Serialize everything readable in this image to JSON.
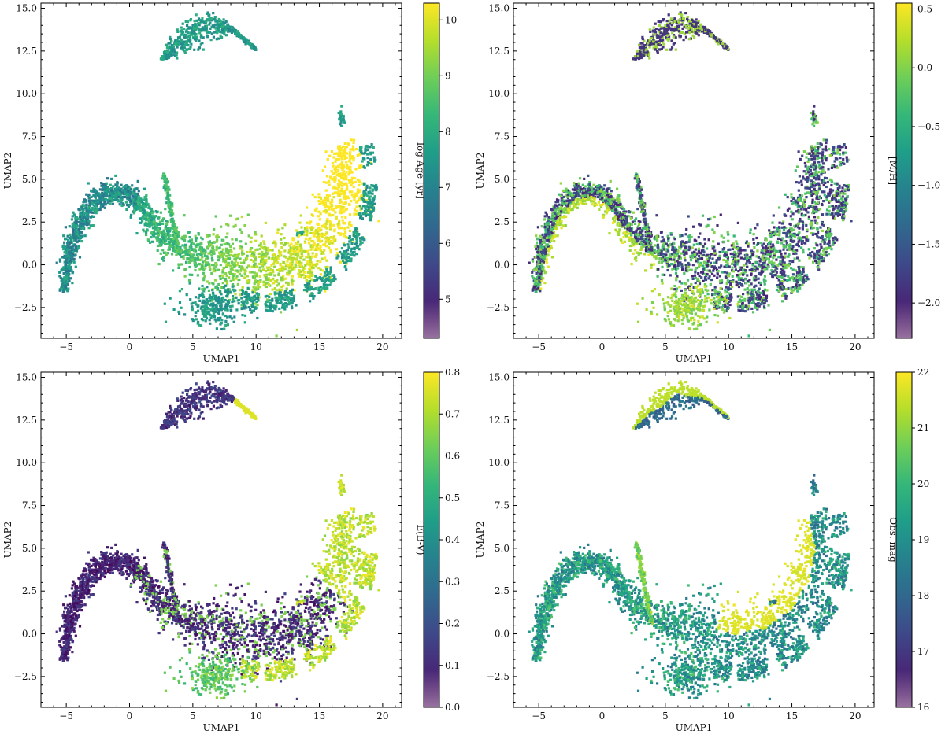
{
  "figure": {
    "panels": 4,
    "layout": "2x2 grid of UMAP scatter plots, colored by different parameters"
  },
  "chart_data": [
    {
      "type": "scatter",
      "title": "",
      "xlabel": "UMAP1",
      "ylabel": "UMAP2",
      "xlim": [
        -7,
        21.5
      ],
      "ylim": [
        -4.3,
        15.3
      ],
      "xticks": [
        "−5",
        "0",
        "5",
        "10",
        "15",
        "20"
      ],
      "xtick_values": [
        -5,
        0,
        5,
        10,
        15,
        20
      ],
      "yticks": [
        "−2.5",
        "0.0",
        "2.5",
        "5.0",
        "7.5",
        "10.0",
        "12.5",
        "15.0"
      ],
      "ytick_values": [
        -2.5,
        0,
        2.5,
        5,
        7.5,
        10,
        12.5,
        15
      ],
      "colorbar": {
        "label": "log Age [yr]",
        "range": [
          4.3,
          10.3
        ],
        "ticks": [
          "5",
          "6",
          "7",
          "8",
          "9",
          "10"
        ],
        "tick_values": [
          5,
          6,
          7,
          8,
          9,
          10
        ]
      },
      "color_pattern": "age",
      "grid": false
    },
    {
      "type": "scatter",
      "title": "",
      "xlabel": "UMAP1",
      "ylabel": "UMAP2",
      "xlim": [
        -7,
        21.5
      ],
      "ylim": [
        -4.3,
        15.3
      ],
      "xticks": [
        "−5",
        "0",
        "5",
        "10",
        "15",
        "20"
      ],
      "xtick_values": [
        -5,
        0,
        5,
        10,
        15,
        20
      ],
      "yticks": [
        "−2.5",
        "0.0",
        "2.5",
        "5.0",
        "7.5",
        "10.0",
        "12.5",
        "15.0"
      ],
      "ytick_values": [
        -2.5,
        0,
        2.5,
        5,
        7.5,
        10,
        12.5,
        15
      ],
      "colorbar": {
        "label": "[M/H]",
        "range": [
          -2.3,
          0.55
        ],
        "ticks": [
          "−2.0",
          "−1.5",
          "−1.0",
          "−0.5",
          "0.0",
          "0.5"
        ],
        "tick_values": [
          -2.0,
          -1.5,
          -1.0,
          -0.5,
          0.0,
          0.5
        ]
      },
      "color_pattern": "metal",
      "grid": false
    },
    {
      "type": "scatter",
      "title": "",
      "xlabel": "UMAP1",
      "ylabel": "UMAP2",
      "xlim": [
        -7,
        21.5
      ],
      "ylim": [
        -4.3,
        15.3
      ],
      "xticks": [
        "−5",
        "0",
        "5",
        "10",
        "15",
        "20"
      ],
      "xtick_values": [
        -5,
        0,
        5,
        10,
        15,
        20
      ],
      "yticks": [
        "−2.5",
        "0.0",
        "2.5",
        "5.0",
        "7.5",
        "10.0",
        "12.5",
        "15.0"
      ],
      "ytick_values": [
        -2.5,
        0,
        2.5,
        5,
        7.5,
        10,
        12.5,
        15
      ],
      "colorbar": {
        "label": "E(B-V)",
        "range": [
          0.0,
          0.8
        ],
        "ticks": [
          "0.0",
          "0.1",
          "0.2",
          "0.3",
          "0.4",
          "0.5",
          "0.6",
          "0.7",
          "0.8"
        ],
        "tick_values": [
          0.0,
          0.1,
          0.2,
          0.3,
          0.4,
          0.5,
          0.6,
          0.7,
          0.8
        ]
      },
      "color_pattern": "ebv",
      "grid": false
    },
    {
      "type": "scatter",
      "title": "",
      "xlabel": "UMAP1",
      "ylabel": "UMAP2",
      "xlim": [
        -7,
        21.5
      ],
      "ylim": [
        -4.3,
        15.3
      ],
      "xticks": [
        "−5",
        "0",
        "5",
        "10",
        "15",
        "20"
      ],
      "xtick_values": [
        -5,
        0,
        5,
        10,
        15,
        20
      ],
      "yticks": [
        "−2.5",
        "0.0",
        "2.5",
        "5.0",
        "7.5",
        "10.0",
        "12.5",
        "15.0"
      ],
      "ytick_values": [
        -2.5,
        0,
        2.5,
        5,
        7.5,
        10,
        12.5,
        15
      ],
      "colorbar": {
        "label": "Obs. mag",
        "range": [
          16,
          22
        ],
        "ticks": [
          "16",
          "17",
          "18",
          "19",
          "20",
          "21",
          "22"
        ],
        "tick_values": [
          16,
          17,
          18,
          19,
          20,
          21,
          22
        ]
      },
      "color_pattern": "mag",
      "grid": false
    }
  ],
  "colormap": {
    "name": "viridis",
    "stops": [
      "#440154",
      "#482878",
      "#3e4989",
      "#31688e",
      "#26828e",
      "#1f9e89",
      "#35b779",
      "#6ece58",
      "#b5de2b",
      "#fde725"
    ]
  },
  "manifold_shape": {
    "main_arm_spine": [
      [
        -5.2,
        -1.6
      ],
      [
        -4.8,
        0.5
      ],
      [
        -3.8,
        2.8
      ],
      [
        -2.3,
        4.1
      ],
      [
        -0.6,
        4.3
      ],
      [
        0.8,
        3.6
      ],
      [
        2.0,
        2.3
      ],
      [
        3.5,
        1.1
      ],
      [
        5.5,
        0.5
      ],
      [
        8.0,
        0.1
      ],
      [
        10.5,
        -0.3
      ],
      [
        13.0,
        0.0
      ],
      [
        15.2,
        1.2
      ],
      [
        16.7,
        3.1
      ],
      [
        17.2,
        5.2
      ],
      [
        16.6,
        7.0
      ]
    ],
    "top_island_spine": [
      [
        2.5,
        12.0
      ],
      [
        4.0,
        13.0
      ],
      [
        6.0,
        14.0
      ],
      [
        8.0,
        13.8
      ],
      [
        10.0,
        12.6
      ]
    ]
  }
}
